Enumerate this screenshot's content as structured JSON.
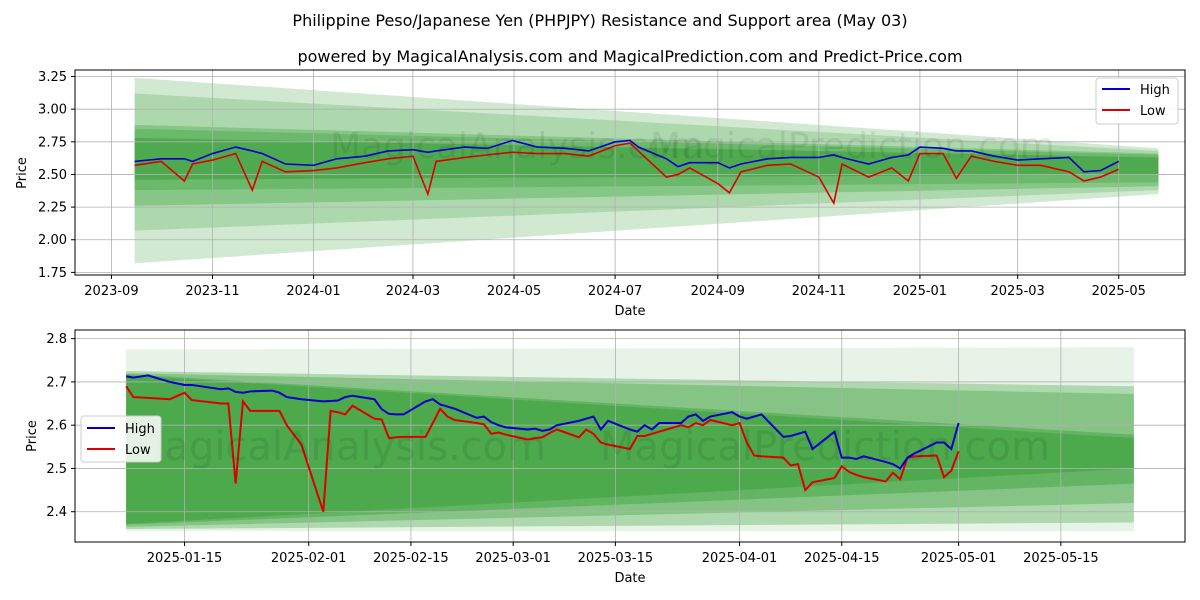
{
  "figure": {
    "title": "Philippine Peso/Japanese Yen (PHPJPY) Resistance and Support area (May 03)",
    "subtitle": "powered by MagicalAnalysis.com and MagicalPrediction.com and Predict-Price.com",
    "watermark_left": "MagicalAnalysis.com",
    "watermark_right": "MagicalPrediction.com"
  },
  "colors": {
    "high": "#0000cc",
    "low": "#dd0000",
    "band": "#2e9a2e",
    "grid": "#b0b0b0"
  },
  "chart_data": [
    {
      "type": "line",
      "xlabel": "Date",
      "ylabel": "Price",
      "x_ticks": [
        "2023-09",
        "2023-11",
        "2024-01",
        "2024-03",
        "2024-05",
        "2024-07",
        "2024-09",
        "2024-11",
        "2025-01",
        "2025-03",
        "2025-05"
      ],
      "y_ticks": [
        "1.75",
        "2.00",
        "2.25",
        "2.50",
        "2.75",
        "3.00",
        "3.25"
      ],
      "ylim": [
        1.73,
        3.3
      ],
      "grid": true,
      "legend": "top-right",
      "x": [
        "2023-09-15",
        "2023-10-01",
        "2023-10-15",
        "2023-10-20",
        "2023-11-01",
        "2023-11-15",
        "2023-11-25",
        "2023-12-01",
        "2023-12-15",
        "2024-01-01",
        "2024-01-15",
        "2024-02-01",
        "2024-02-15",
        "2024-03-01",
        "2024-03-10",
        "2024-03-15",
        "2024-04-01",
        "2024-04-15",
        "2024-04-30",
        "2024-05-15",
        "2024-06-01",
        "2024-06-15",
        "2024-07-01",
        "2024-07-10",
        "2024-07-15",
        "2024-08-01",
        "2024-08-08",
        "2024-08-15",
        "2024-09-01",
        "2024-09-08",
        "2024-09-15",
        "2024-10-01",
        "2024-10-15",
        "2024-11-01",
        "2024-11-10",
        "2024-11-15",
        "2024-12-01",
        "2024-12-15",
        "2024-12-25",
        "2025-01-01",
        "2025-01-15",
        "2025-01-23",
        "2025-02-01",
        "2025-02-15",
        "2025-03-01",
        "2025-03-15",
        "2025-04-01",
        "2025-04-10",
        "2025-04-20",
        "2025-05-01"
      ],
      "series": [
        {
          "name": "High",
          "values": [
            2.6,
            2.62,
            2.62,
            2.6,
            2.66,
            2.71,
            2.68,
            2.66,
            2.58,
            2.57,
            2.62,
            2.64,
            2.68,
            2.69,
            2.67,
            2.68,
            2.71,
            2.7,
            2.76,
            2.71,
            2.7,
            2.68,
            2.75,
            2.76,
            2.71,
            2.62,
            2.56,
            2.59,
            2.59,
            2.55,
            2.58,
            2.62,
            2.63,
            2.63,
            2.65,
            2.63,
            2.58,
            2.63,
            2.65,
            2.71,
            2.7,
            2.68,
            2.68,
            2.64,
            2.61,
            2.62,
            2.63,
            2.52,
            2.53,
            2.6
          ]
        },
        {
          "name": "Low",
          "values": [
            2.57,
            2.6,
            2.45,
            2.58,
            2.61,
            2.66,
            2.38,
            2.6,
            2.52,
            2.53,
            2.55,
            2.59,
            2.62,
            2.64,
            2.35,
            2.6,
            2.63,
            2.65,
            2.67,
            2.66,
            2.66,
            2.64,
            2.72,
            2.74,
            2.68,
            2.48,
            2.5,
            2.55,
            2.43,
            2.36,
            2.52,
            2.57,
            2.58,
            2.48,
            2.28,
            2.58,
            2.48,
            2.55,
            2.45,
            2.66,
            2.66,
            2.47,
            2.64,
            2.6,
            2.57,
            2.57,
            2.52,
            2.45,
            2.48,
            2.54
          ]
        }
      ],
      "bands": [
        {
          "start": "2023-09-15",
          "end": "2025-05-25",
          "start_range": [
            1.82,
            3.24
          ],
          "end_range": [
            2.35,
            2.7
          ]
        },
        {
          "start": "2023-09-15",
          "end": "2025-05-25",
          "start_range": [
            2.07,
            3.12
          ],
          "end_range": [
            2.38,
            2.68
          ]
        },
        {
          "start": "2023-09-15",
          "end": "2025-05-25",
          "start_range": [
            2.26,
            2.88
          ],
          "end_range": [
            2.41,
            2.66
          ]
        },
        {
          "start": "2023-09-15",
          "end": "2025-05-25",
          "start_range": [
            2.38,
            2.85
          ],
          "end_range": [
            2.44,
            2.65
          ]
        },
        {
          "start": "2023-09-15",
          "end": "2025-05-25",
          "start_range": [
            2.46,
            2.78
          ],
          "end_range": [
            2.5,
            2.63
          ]
        }
      ]
    },
    {
      "type": "line",
      "xlabel": "Date",
      "ylabel": "Price",
      "x_ticks": [
        "2025-01-15",
        "2025-02-01",
        "2025-02-15",
        "2025-03-01",
        "2025-03-15",
        "2025-04-01",
        "2025-04-15",
        "2025-05-01",
        "2025-05-15"
      ],
      "y_ticks": [
        "2.4",
        "2.5",
        "2.6",
        "2.7",
        "2.8"
      ],
      "ylim": [
        2.33,
        2.82
      ],
      "grid": true,
      "legend": "center-left",
      "x": [
        "2025-01-07",
        "2025-01-08",
        "2025-01-10",
        "2025-01-13",
        "2025-01-15",
        "2025-01-16",
        "2025-01-20",
        "2025-01-21",
        "2025-01-22",
        "2025-01-23",
        "2025-01-24",
        "2025-01-27",
        "2025-01-28",
        "2025-01-29",
        "2025-01-31",
        "2025-02-03",
        "2025-02-04",
        "2025-02-05",
        "2025-02-06",
        "2025-02-07",
        "2025-02-10",
        "2025-02-11",
        "2025-02-12",
        "2025-02-13",
        "2025-02-14",
        "2025-02-17",
        "2025-02-18",
        "2025-02-19",
        "2025-02-20",
        "2025-02-21",
        "2025-02-24",
        "2025-02-25",
        "2025-02-26",
        "2025-02-27",
        "2025-02-28",
        "2025-03-03",
        "2025-03-04",
        "2025-03-05",
        "2025-03-06",
        "2025-03-07",
        "2025-03-10",
        "2025-03-11",
        "2025-03-12",
        "2025-03-13",
        "2025-03-14",
        "2025-03-17",
        "2025-03-18",
        "2025-03-19",
        "2025-03-20",
        "2025-03-21",
        "2025-03-24",
        "2025-03-25",
        "2025-03-26",
        "2025-03-27",
        "2025-03-28",
        "2025-03-31",
        "2025-04-01",
        "2025-04-02",
        "2025-04-03",
        "2025-04-04",
        "2025-04-07",
        "2025-04-08",
        "2025-04-09",
        "2025-04-10",
        "2025-04-11",
        "2025-04-14",
        "2025-04-15",
        "2025-04-16",
        "2025-04-17",
        "2025-04-18",
        "2025-04-21",
        "2025-04-22",
        "2025-04-23",
        "2025-04-24",
        "2025-04-25",
        "2025-04-28",
        "2025-04-29",
        "2025-04-30",
        "2025-05-01"
      ],
      "series": [
        {
          "name": "High",
          "values": [
            2.713,
            2.71,
            2.715,
            2.7,
            2.693,
            2.693,
            2.683,
            2.685,
            2.677,
            2.675,
            2.678,
            2.68,
            2.675,
            2.665,
            2.66,
            2.655,
            2.656,
            2.657,
            2.665,
            2.668,
            2.66,
            2.637,
            2.626,
            2.625,
            2.625,
            2.655,
            2.66,
            2.648,
            2.643,
            2.638,
            2.617,
            2.62,
            2.607,
            2.6,
            2.595,
            2.59,
            2.592,
            2.587,
            2.59,
            2.6,
            2.61,
            2.615,
            2.62,
            2.59,
            2.61,
            2.59,
            2.585,
            2.6,
            2.59,
            2.605,
            2.605,
            2.62,
            2.625,
            2.61,
            2.62,
            2.63,
            2.62,
            2.615,
            2.62,
            2.625,
            2.573,
            2.575,
            2.58,
            2.585,
            2.545,
            2.585,
            2.525,
            2.525,
            2.522,
            2.528,
            2.515,
            2.51,
            2.5,
            2.525,
            2.535,
            2.56,
            2.56,
            2.545,
            2.605
          ]
        },
        {
          "name": "Low",
          "values": [
            2.69,
            2.665,
            2.663,
            2.66,
            2.675,
            2.658,
            2.65,
            2.65,
            2.465,
            2.655,
            2.633,
            2.633,
            2.633,
            2.6,
            2.555,
            2.4,
            2.633,
            2.63,
            2.625,
            2.645,
            2.615,
            2.613,
            2.57,
            2.572,
            2.573,
            2.573,
            2.605,
            2.638,
            2.62,
            2.612,
            2.605,
            2.602,
            2.58,
            2.583,
            2.578,
            2.567,
            2.57,
            2.572,
            2.582,
            2.59,
            2.572,
            2.59,
            2.58,
            2.56,
            2.555,
            2.545,
            2.575,
            2.575,
            2.58,
            2.585,
            2.6,
            2.595,
            2.605,
            2.6,
            2.612,
            2.6,
            2.605,
            2.56,
            2.53,
            2.528,
            2.525,
            2.507,
            2.51,
            2.45,
            2.468,
            2.478,
            2.505,
            2.492,
            2.485,
            2.48,
            2.47,
            2.49,
            2.475,
            2.525,
            2.528,
            2.53,
            2.48,
            2.495,
            2.54
          ]
        }
      ],
      "bands": [
        {
          "start": "2025-01-07",
          "end": "2025-05-25",
          "start_range": [
            2.355,
            2.775
          ],
          "end_range": [
            2.355,
            2.78
          ]
        },
        {
          "start": "2025-01-07",
          "end": "2025-05-25",
          "start_range": [
            2.36,
            2.725
          ],
          "end_range": [
            2.375,
            2.69
          ]
        },
        {
          "start": "2025-01-07",
          "end": "2025-05-25",
          "start_range": [
            2.365,
            2.72
          ],
          "end_range": [
            2.42,
            2.672
          ]
        },
        {
          "start": "2025-01-07",
          "end": "2025-05-25",
          "start_range": [
            2.37,
            2.718
          ],
          "end_range": [
            2.465,
            2.578
          ]
        },
        {
          "start": "2025-01-07",
          "end": "2025-05-25",
          "start_range": [
            2.372,
            2.715
          ],
          "end_range": [
            2.5,
            2.57
          ]
        }
      ]
    }
  ]
}
